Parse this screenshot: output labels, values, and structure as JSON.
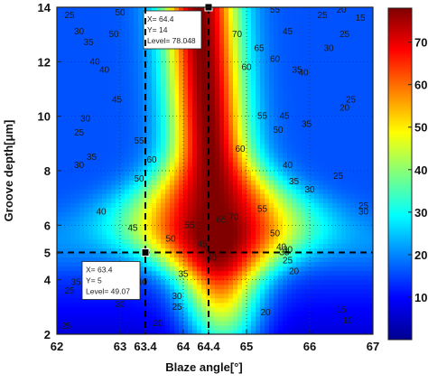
{
  "chart_data": {
    "type": "heatmap",
    "title": "",
    "xlabel": "Blaze angle[°]",
    "ylabel": "Groove depth[μm]",
    "xlim": [
      62,
      67
    ],
    "ylim": [
      2,
      14
    ],
    "x_ticks": [
      {
        "value": 62,
        "label": "62"
      },
      {
        "value": 63,
        "label": "63"
      },
      {
        "value": 63.4,
        "label": "63.4"
      },
      {
        "value": 64,
        "label": "64"
      },
      {
        "value": 64.4,
        "label": "64.4"
      },
      {
        "value": 65,
        "label": "65"
      },
      {
        "value": 66,
        "label": "66"
      },
      {
        "value": 67,
        "label": "67"
      }
    ],
    "y_ticks": [
      {
        "value": 2,
        "label": "2"
      },
      {
        "value": 4,
        "label": "4"
      },
      {
        "value": 5,
        "label": "5"
      },
      {
        "value": 6,
        "label": "6"
      },
      {
        "value": 8,
        "label": "8"
      },
      {
        "value": 10,
        "label": "10"
      },
      {
        "value": 12,
        "label": "12"
      },
      {
        "value": 14,
        "label": "14"
      }
    ],
    "grid": true,
    "colorbar": {
      "range": [
        0,
        78
      ],
      "ticks": [
        {
          "value": 10,
          "label": "10"
        },
        {
          "value": 20,
          "label": "20"
        },
        {
          "value": 30,
          "label": "30"
        },
        {
          "value": 40,
          "label": "40"
        },
        {
          "value": 50,
          "label": "50"
        },
        {
          "value": 60,
          "label": "60"
        },
        {
          "value": 70,
          "label": "70"
        }
      ]
    },
    "contour_labels": [
      {
        "x": 62.2,
        "y": 13.6,
        "label": "25"
      },
      {
        "x": 62.5,
        "y": 12.6,
        "label": "35"
      },
      {
        "x": 62.35,
        "y": 13.0,
        "label": "30"
      },
      {
        "x": 62.6,
        "y": 11.9,
        "label": "40"
      },
      {
        "x": 62.95,
        "y": 10.5,
        "label": "45"
      },
      {
        "x": 62.75,
        "y": 11.6,
        "label": "40"
      },
      {
        "x": 63.0,
        "y": 13.7,
        "label": "50"
      },
      {
        "x": 62.9,
        "y": 12.9,
        "label": "50"
      },
      {
        "x": 62.35,
        "y": 9.3,
        "label": "25"
      },
      {
        "x": 62.45,
        "y": 9.8,
        "label": "30"
      },
      {
        "x": 62.35,
        "y": 8.1,
        "label": "30"
      },
      {
        "x": 62.55,
        "y": 8.4,
        "label": "35"
      },
      {
        "x": 62.7,
        "y": 6.4,
        "label": "40"
      },
      {
        "x": 63.3,
        "y": 9.0,
        "label": "55"
      },
      {
        "x": 63.3,
        "y": 7.6,
        "label": "50"
      },
      {
        "x": 63.5,
        "y": 8.3,
        "label": "60"
      },
      {
        "x": 63.2,
        "y": 5.8,
        "label": "45"
      },
      {
        "x": 63.8,
        "y": 5.4,
        "label": "50"
      },
      {
        "x": 64.1,
        "y": 5.9,
        "label": "55"
      },
      {
        "x": 64.3,
        "y": 5.2,
        "label": "45"
      },
      {
        "x": 64.45,
        "y": 4.7,
        "label": "40"
      },
      {
        "x": 64.0,
        "y": 4.1,
        "label": "35"
      },
      {
        "x": 64.6,
        "y": 6.1,
        "label": "65"
      },
      {
        "x": 64.8,
        "y": 6.2,
        "label": "70"
      },
      {
        "x": 64.85,
        "y": 12.9,
        "label": "70"
      },
      {
        "x": 65.0,
        "y": 11.7,
        "label": "60"
      },
      {
        "x": 64.9,
        "y": 8.7,
        "label": "60"
      },
      {
        "x": 65.2,
        "y": 12.4,
        "label": "65"
      },
      {
        "x": 65.45,
        "y": 13.8,
        "label": "55"
      },
      {
        "x": 65.65,
        "y": 13.0,
        "label": "45"
      },
      {
        "x": 65.45,
        "y": 12.0,
        "label": "60"
      },
      {
        "x": 65.25,
        "y": 9.9,
        "label": "55"
      },
      {
        "x": 65.5,
        "y": 9.4,
        "label": "50"
      },
      {
        "x": 65.6,
        "y": 9.9,
        "label": "45"
      },
      {
        "x": 65.25,
        "y": 6.5,
        "label": "55"
      },
      {
        "x": 65.8,
        "y": 11.6,
        "label": "35"
      },
      {
        "x": 65.9,
        "y": 11.5,
        "label": "40"
      },
      {
        "x": 65.95,
        "y": 9.6,
        "label": "35"
      },
      {
        "x": 65.65,
        "y": 8.1,
        "label": "40"
      },
      {
        "x": 66.0,
        "y": 7.2,
        "label": "30"
      },
      {
        "x": 65.75,
        "y": 7.5,
        "label": "35"
      },
      {
        "x": 66.2,
        "y": 13.6,
        "label": "25"
      },
      {
        "x": 66.5,
        "y": 13.8,
        "label": "20"
      },
      {
        "x": 66.3,
        "y": 12.4,
        "label": "30"
      },
      {
        "x": 66.55,
        "y": 12.9,
        "label": "25"
      },
      {
        "x": 66.55,
        "y": 10.2,
        "label": "20"
      },
      {
        "x": 66.65,
        "y": 10.5,
        "label": "25"
      },
      {
        "x": 66.8,
        "y": 13.5,
        "label": "15"
      },
      {
        "x": 66.45,
        "y": 7.7,
        "label": "25"
      },
      {
        "x": 66.85,
        "y": 6.6,
        "label": "25"
      },
      {
        "x": 66.85,
        "y": 6.4,
        "label": "30"
      },
      {
        "x": 65.45,
        "y": 5.6,
        "label": "50"
      },
      {
        "x": 65.55,
        "y": 5.1,
        "label": "40"
      },
      {
        "x": 65.6,
        "y": 4.9,
        "label": "35"
      },
      {
        "x": 65.65,
        "y": 4.6,
        "label": "25"
      },
      {
        "x": 65.75,
        "y": 4.2,
        "label": "20"
      },
      {
        "x": 65.65,
        "y": 5.0,
        "label": "30"
      },
      {
        "x": 65.3,
        "y": 2.7,
        "label": "20"
      },
      {
        "x": 66.5,
        "y": 2.8,
        "label": "15"
      },
      {
        "x": 66.6,
        "y": 2.4,
        "label": "10"
      },
      {
        "x": 63.9,
        "y": 2.9,
        "label": "25"
      },
      {
        "x": 63.6,
        "y": 2.3,
        "label": "20"
      },
      {
        "x": 63.9,
        "y": 3.3,
        "label": "30"
      },
      {
        "x": 63.35,
        "y": 3.8,
        "label": "40"
      },
      {
        "x": 63.0,
        "y": 3.0,
        "label": "30"
      },
      {
        "x": 62.3,
        "y": 3.8,
        "label": "35"
      },
      {
        "x": 62.2,
        "y": 3.5,
        "label": "25"
      },
      {
        "x": 62.15,
        "y": 2.2,
        "label": "25"
      }
    ],
    "crosshairs": [
      {
        "x": 64.4,
        "y": 14,
        "tip": [
          "X= 64.4",
          "Y= 14",
          "Level= 78.048"
        ]
      },
      {
        "x": 63.4,
        "y": 5,
        "tip": [
          "X= 63.4",
          "Y= 5",
          "Level= 49.07"
        ]
      }
    ]
  }
}
